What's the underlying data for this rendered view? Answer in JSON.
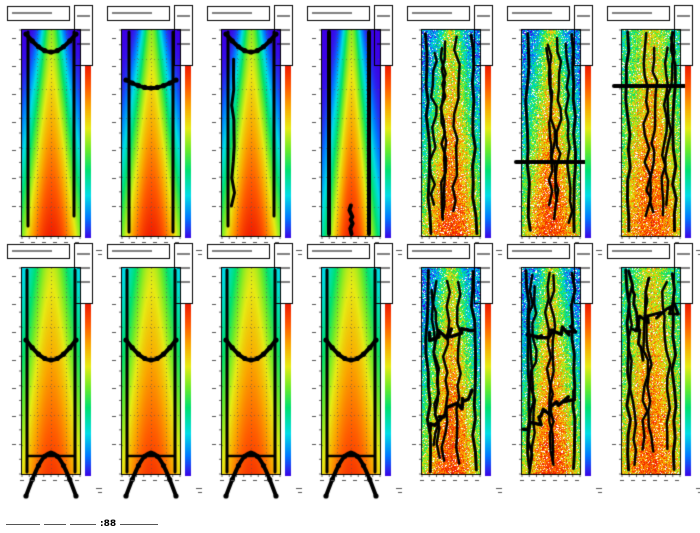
{
  "chart_data": {
    "type": "heatmap",
    "layout": "grid",
    "rows": 2,
    "cols": 7,
    "colormap": "rainbow",
    "colors": {
      "background": "#ffffff",
      "contour": "#000000",
      "grid": "#555555",
      "frame": "#000000"
    },
    "panels": [
      {
        "row": 0,
        "col": 0,
        "pattern": "smooth",
        "contour": "u-top"
      },
      {
        "row": 0,
        "col": 1,
        "pattern": "smooth",
        "contour": "bar-upper"
      },
      {
        "row": 0,
        "col": 2,
        "pattern": "smooth",
        "contour": "u-top-loop"
      },
      {
        "row": 0,
        "col": 3,
        "pattern": "smooth-narrow",
        "contour": "sides"
      },
      {
        "row": 0,
        "col": 4,
        "pattern": "noisy",
        "contour": "noisy"
      },
      {
        "row": 0,
        "col": 5,
        "pattern": "noisy",
        "contour": "noisy-bar-mid"
      },
      {
        "row": 0,
        "col": 6,
        "pattern": "noisy-wide",
        "contour": "noisy-bar-top"
      },
      {
        "row": 1,
        "col": 0,
        "pattern": "smooth-wide",
        "contour": "arch-pair"
      },
      {
        "row": 1,
        "col": 1,
        "pattern": "smooth-wide",
        "contour": "arch-pair"
      },
      {
        "row": 1,
        "col": 2,
        "pattern": "smooth-wide",
        "contour": "arch-pair"
      },
      {
        "row": 1,
        "col": 3,
        "pattern": "smooth-wide",
        "contour": "arch-pair"
      },
      {
        "row": 1,
        "col": 4,
        "pattern": "noisy",
        "contour": "noisy-pair"
      },
      {
        "row": 1,
        "col": 5,
        "pattern": "noisy",
        "contour": "noisy-pair"
      },
      {
        "row": 1,
        "col": 6,
        "pattern": "noisy-wide",
        "contour": "noisy-top"
      }
    ]
  },
  "footer": {
    "mark": ":88"
  }
}
